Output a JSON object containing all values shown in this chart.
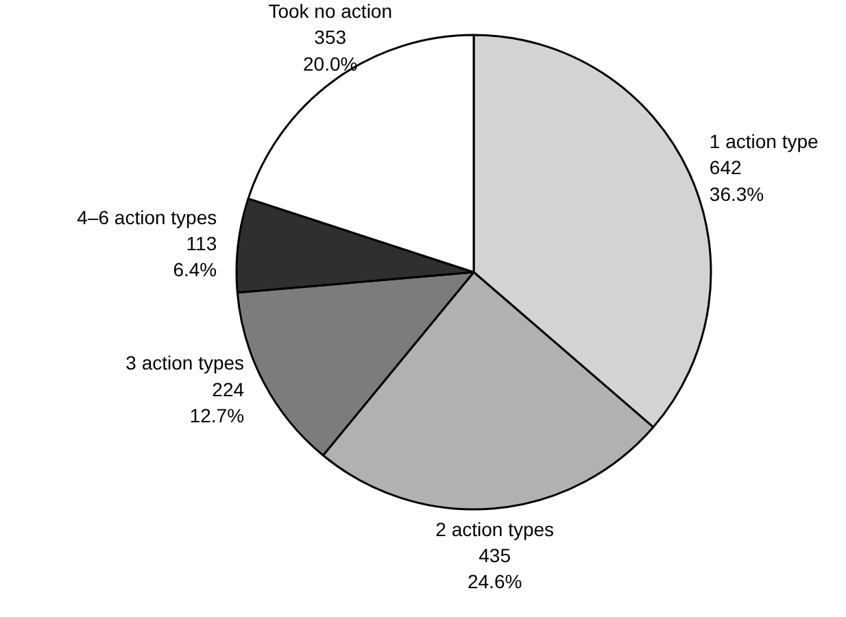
{
  "chart_data": {
    "type": "pie",
    "categories": [
      "1 action type",
      "2 action types",
      "3 action types",
      "4–6 action types",
      "Took no action"
    ],
    "values": [
      642,
      435,
      224,
      113,
      353
    ],
    "value_labels": [
      "642\n36.3%",
      "435\n24.6%",
      "224\n12.7%",
      "113\n6.4%",
      "353\n20.0%"
    ],
    "colors": [
      "#d3d3d3",
      "#b1b1b1",
      "#7c7c7c",
      "#2f2f2f",
      "#ffffff"
    ]
  }
}
